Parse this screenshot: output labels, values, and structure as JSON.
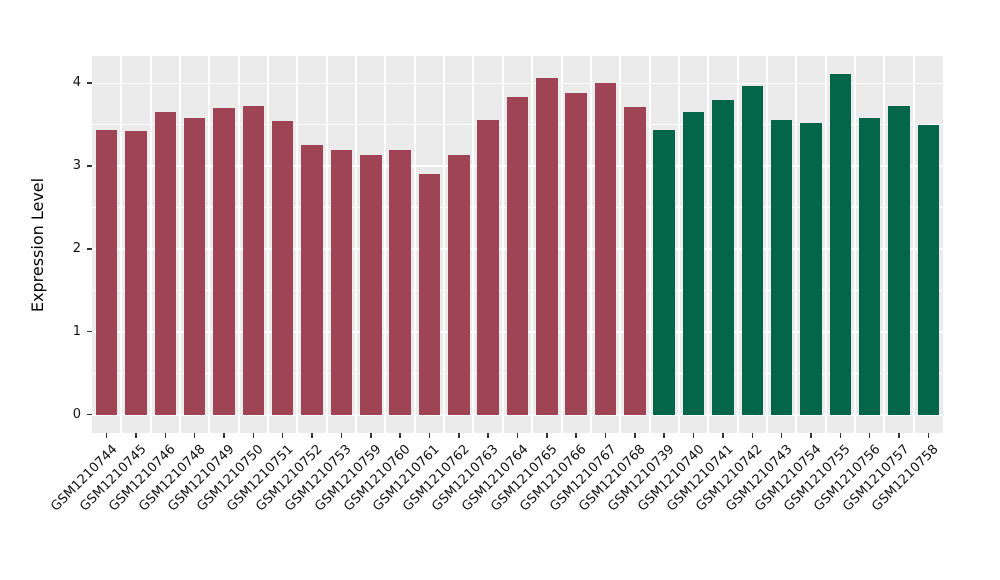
{
  "chart_data": {
    "type": "bar",
    "title": "",
    "xlabel": "",
    "ylabel": "Expression Level",
    "ylim": [
      -0.22,
      4.33
    ],
    "yticks": [
      "0",
      "1",
      "2",
      "3",
      "4"
    ],
    "grid": true,
    "legend_position": "none",
    "panel_background": "#EBEBEB",
    "grid_color": "#FFFFFF",
    "tick_color": "#333333",
    "group_colors": {
      "maroon_group": "#9E4455",
      "green_group": "#036649"
    },
    "categories": [
      "GSM1210744",
      "GSM1210745",
      "GSM1210746",
      "GSM1210748",
      "GSM1210749",
      "GSM1210750",
      "GSM1210751",
      "GSM1210752",
      "GSM1210753",
      "GSM1210759",
      "GSM1210760",
      "GSM1210761",
      "GSM1210762",
      "GSM1210763",
      "GSM1210764",
      "GSM1210765",
      "GSM1210766",
      "GSM1210767",
      "GSM1210768",
      "GSM1210739",
      "GSM1210740",
      "GSM1210741",
      "GSM1210742",
      "GSM1210743",
      "GSM1210754",
      "GSM1210755",
      "GSM1210756",
      "GSM1210757",
      "GSM1210758"
    ],
    "values": [
      3.44,
      3.42,
      3.66,
      3.58,
      3.7,
      3.73,
      3.55,
      3.26,
      3.19,
      3.13,
      3.19,
      2.91,
      3.14,
      3.56,
      3.83,
      4.07,
      3.88,
      4.01,
      3.72,
      3.44,
      3.65,
      3.8,
      3.97,
      3.56,
      3.52,
      4.11,
      3.58,
      3.73,
      3.5
    ],
    "bar_groups": [
      "maroon_group",
      "maroon_group",
      "maroon_group",
      "maroon_group",
      "maroon_group",
      "maroon_group",
      "maroon_group",
      "maroon_group",
      "maroon_group",
      "maroon_group",
      "maroon_group",
      "maroon_group",
      "maroon_group",
      "maroon_group",
      "maroon_group",
      "maroon_group",
      "maroon_group",
      "maroon_group",
      "maroon_group",
      "green_group",
      "green_group",
      "green_group",
      "green_group",
      "green_group",
      "green_group",
      "green_group",
      "green_group",
      "green_group",
      "green_group"
    ]
  }
}
